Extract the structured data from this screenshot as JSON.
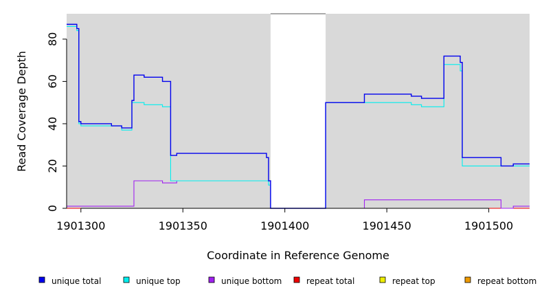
{
  "chart_data": {
    "type": "line",
    "title": "",
    "xlabel": "Coordinate in Reference Genome",
    "ylabel": "Read Coverage Depth",
    "xlim": [
      1901293,
      1901520
    ],
    "ylim": [
      0,
      92
    ],
    "x_ticks": [
      1901300,
      1901350,
      1901400,
      1901450,
      1901500
    ],
    "y_ticks": [
      0,
      20,
      40,
      60,
      80
    ],
    "grid": false,
    "background": "#d9d9d9",
    "uncovered_regions": [
      [
        1901393,
        1901420
      ]
    ],
    "legend_position": "bottom",
    "series": [
      {
        "name": "unique total",
        "color": "#0000ee",
        "points": [
          [
            1901293,
            87
          ],
          [
            1901298,
            87
          ],
          [
            1901298,
            85
          ],
          [
            1901299,
            85
          ],
          [
            1901299,
            41
          ],
          [
            1901300,
            41
          ],
          [
            1901300,
            40
          ],
          [
            1901315,
            40
          ],
          [
            1901315,
            39
          ],
          [
            1901320,
            39
          ],
          [
            1901320,
            38
          ],
          [
            1901325,
            38
          ],
          [
            1901325,
            51
          ],
          [
            1901326,
            51
          ],
          [
            1901326,
            63
          ],
          [
            1901331,
            63
          ],
          [
            1901331,
            62
          ],
          [
            1901340,
            62
          ],
          [
            1901340,
            60
          ],
          [
            1901344,
            60
          ],
          [
            1901344,
            25
          ],
          [
            1901347,
            25
          ],
          [
            1901347,
            26
          ],
          [
            1901391,
            26
          ],
          [
            1901391,
            24
          ],
          [
            1901392,
            24
          ],
          [
            1901392,
            13
          ],
          [
            1901393,
            13
          ],
          [
            1901393,
            0
          ],
          [
            1901420,
            0
          ],
          [
            1901420,
            50
          ],
          [
            1901439,
            50
          ],
          [
            1901439,
            54
          ],
          [
            1901462,
            54
          ],
          [
            1901462,
            53
          ],
          [
            1901467,
            53
          ],
          [
            1901467,
            52
          ],
          [
            1901478,
            52
          ],
          [
            1901478,
            72
          ],
          [
            1901486,
            72
          ],
          [
            1901486,
            69
          ],
          [
            1901487,
            69
          ],
          [
            1901487,
            24
          ],
          [
            1901506,
            24
          ],
          [
            1901506,
            20
          ],
          [
            1901512,
            20
          ],
          [
            1901512,
            21
          ],
          [
            1901520,
            21
          ]
        ]
      },
      {
        "name": "unique top",
        "color": "#00eeee",
        "points": [
          [
            1901293,
            86
          ],
          [
            1901298,
            86
          ],
          [
            1901298,
            84
          ],
          [
            1901299,
            84
          ],
          [
            1901299,
            40
          ],
          [
            1901300,
            40
          ],
          [
            1901300,
            39
          ],
          [
            1901320,
            39
          ],
          [
            1901320,
            37
          ],
          [
            1901325,
            37
          ],
          [
            1901325,
            50
          ],
          [
            1901331,
            50
          ],
          [
            1901331,
            49
          ],
          [
            1901340,
            49
          ],
          [
            1901340,
            48
          ],
          [
            1901344,
            48
          ],
          [
            1901344,
            13
          ],
          [
            1901392,
            13
          ],
          [
            1901392,
            11
          ],
          [
            1901393,
            11
          ],
          [
            1901393,
            0
          ],
          [
            1901420,
            0
          ],
          [
            1901420,
            50
          ],
          [
            1901462,
            50
          ],
          [
            1901462,
            49
          ],
          [
            1901467,
            49
          ],
          [
            1901467,
            48
          ],
          [
            1901478,
            48
          ],
          [
            1901478,
            68
          ],
          [
            1901486,
            68
          ],
          [
            1901486,
            65
          ],
          [
            1901487,
            65
          ],
          [
            1901487,
            20
          ],
          [
            1901506,
            20
          ],
          [
            1901506,
            20
          ],
          [
            1901520,
            20
          ]
        ]
      },
      {
        "name": "unique bottom",
        "color": "#a020f0",
        "points": [
          [
            1901293,
            1
          ],
          [
            1901326,
            1
          ],
          [
            1901326,
            13
          ],
          [
            1901340,
            13
          ],
          [
            1901340,
            12
          ],
          [
            1901347,
            12
          ],
          [
            1901347,
            13
          ],
          [
            1901393,
            13
          ],
          [
            1901393,
            0
          ],
          [
            1901439,
            0
          ],
          [
            1901439,
            4
          ],
          [
            1901506,
            4
          ],
          [
            1901506,
            0
          ],
          [
            1901512,
            0
          ],
          [
            1901512,
            1
          ],
          [
            1901520,
            1
          ]
        ]
      },
      {
        "name": "repeat total",
        "color": "#ee0000",
        "points": [
          [
            1901293,
            0
          ],
          [
            1901520,
            0
          ]
        ]
      },
      {
        "name": "repeat top",
        "color": "#eeee00",
        "points": [
          [
            1901293,
            0
          ],
          [
            1901520,
            0
          ]
        ]
      },
      {
        "name": "repeat bottom",
        "color": "#ee9a00",
        "points": [
          [
            1901293,
            0
          ],
          [
            1901520,
            0
          ]
        ]
      }
    ]
  }
}
